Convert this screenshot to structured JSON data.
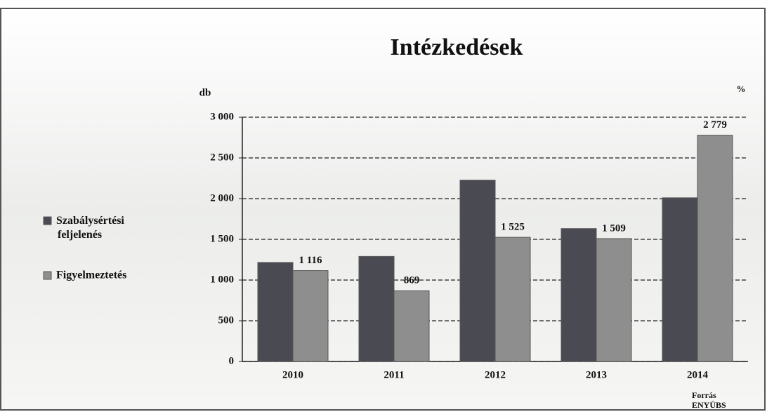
{
  "chart_data": {
    "type": "bar",
    "title": "Intézkedések",
    "y_label": "db",
    "y2_label": "%",
    "source": [
      "Forrás",
      "ENYÜBS"
    ],
    "categories": [
      "2010",
      "2011",
      "2012",
      "2013",
      "2014"
    ],
    "series": [
      {
        "name": "Szabálysértési feljelenés",
        "color": "#4a4a52",
        "values": [
          1216,
          1290,
          2227,
          1632,
          2010
        ]
      },
      {
        "name": "Figyelmeztetés",
        "color": "#8e8e8e",
        "values": [
          1116,
          869,
          1525,
          1509,
          2779
        ],
        "value_labels": [
          "1 116",
          "869",
          "1 525",
          "1 509",
          "2 779"
        ]
      }
    ],
    "ylim": [
      0,
      3000
    ],
    "yticks": [
      0,
      500,
      {
        "value": 1000,
        "label": "1 000"
      },
      {
        "value": 1500,
        "label": "1 500"
      },
      {
        "value": 2000,
        "label": "2 000"
      },
      {
        "value": 2500,
        "label": "2 500"
      },
      {
        "value": 3000,
        "label": "3 000"
      }
    ],
    "grid": true
  }
}
